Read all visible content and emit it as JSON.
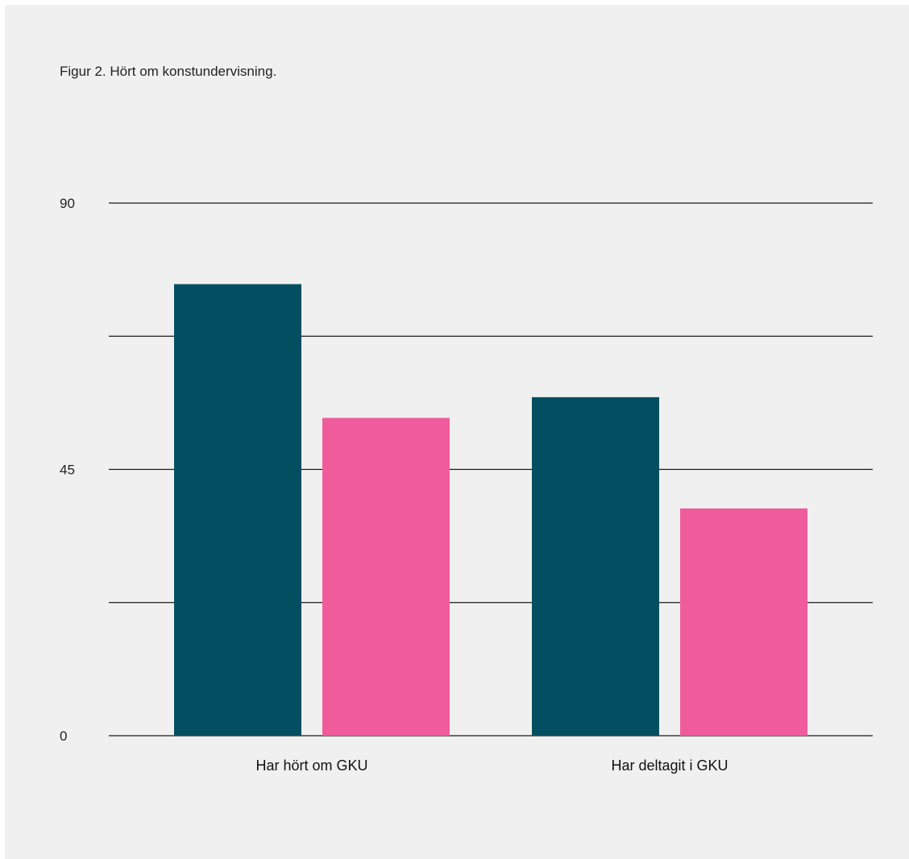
{
  "chart_data": {
    "type": "bar",
    "title": "Figur 2. Hört om konstundervisning.",
    "xlabel": "",
    "ylabel": "",
    "ylim": [
      0,
      90
    ],
    "yticks": [
      0,
      22.5,
      45,
      67.5,
      90
    ],
    "ytick_labels": [
      "0",
      "",
      "45",
      "",
      "90"
    ],
    "grid": true,
    "categories": [
      "Har hört om GKU",
      "Har deltagit i GKU"
    ],
    "series": [
      {
        "values": [
          76.3,
          57.2
        ],
        "color": "#034f61"
      },
      {
        "values": [
          53.7,
          38.4
        ],
        "color": "#f05c9b"
      }
    ]
  }
}
